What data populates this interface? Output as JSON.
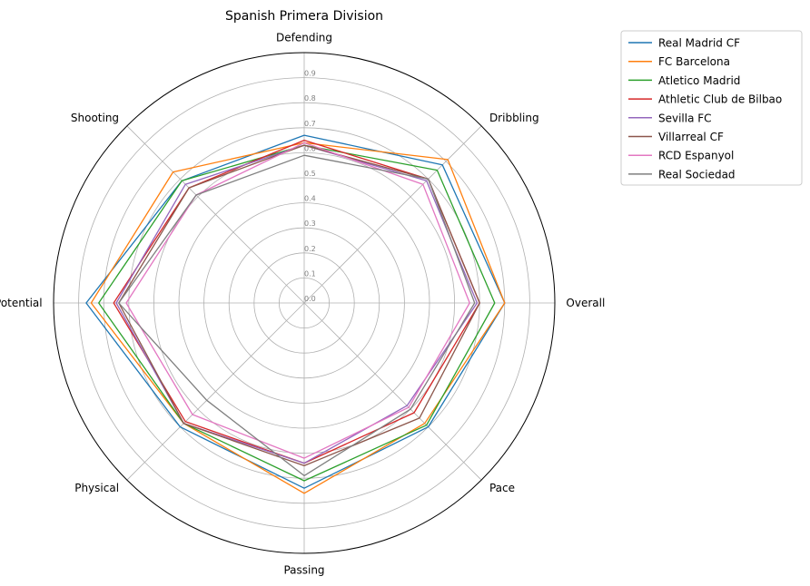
{
  "chart_data": {
    "type": "radar",
    "title": "Spanish Primera Division",
    "axes": [
      "Overall",
      "Dribbling",
      "Defending",
      "Shooting",
      "Potential",
      "Physical",
      "Passing",
      "Pace"
    ],
    "rlim": [
      0,
      1
    ],
    "r_ticks": [
      "0.0",
      "0.1",
      "0.2",
      "0.3",
      "0.4",
      "0.5",
      "0.6",
      "0.7",
      "0.8",
      "0.9"
    ],
    "grid": true,
    "legend_position": "outside-right",
    "series": [
      {
        "name": "Real Madrid CF",
        "color": "#1f77b4",
        "values": [
          0.8,
          0.78,
          0.67,
          0.69,
          0.87,
          0.7,
          0.74,
          0.7
        ]
      },
      {
        "name": "FC Barcelona",
        "color": "#ff7f0e",
        "values": [
          0.8,
          0.81,
          0.64,
          0.74,
          0.85,
          0.68,
          0.76,
          0.68
        ]
      },
      {
        "name": "Atletico Madrid",
        "color": "#2ca02c",
        "values": [
          0.76,
          0.75,
          0.63,
          0.69,
          0.82,
          0.68,
          0.71,
          0.69
        ]
      },
      {
        "name": "Athletic Club de Bilbao",
        "color": "#d62728",
        "values": [
          0.7,
          0.7,
          0.65,
          0.65,
          0.76,
          0.67,
          0.64,
          0.62
        ]
      },
      {
        "name": "Sevilla FC",
        "color": "#9467bd",
        "values": [
          0.69,
          0.69,
          0.63,
          0.67,
          0.75,
          0.68,
          0.64,
          0.58
        ]
      },
      {
        "name": "Villarreal CF",
        "color": "#8c564b",
        "values": [
          0.7,
          0.7,
          0.63,
          0.65,
          0.74,
          0.68,
          0.65,
          0.65
        ]
      },
      {
        "name": "RCD Espanyol",
        "color": "#e377c2",
        "values": [
          0.66,
          0.67,
          0.64,
          0.61,
          0.71,
          0.63,
          0.62,
          0.59
        ]
      },
      {
        "name": "Real Sociedad",
        "color": "#7f7f7f",
        "values": [
          0.68,
          0.7,
          0.59,
          0.61,
          0.74,
          0.55,
          0.69,
          0.6
        ]
      }
    ]
  }
}
